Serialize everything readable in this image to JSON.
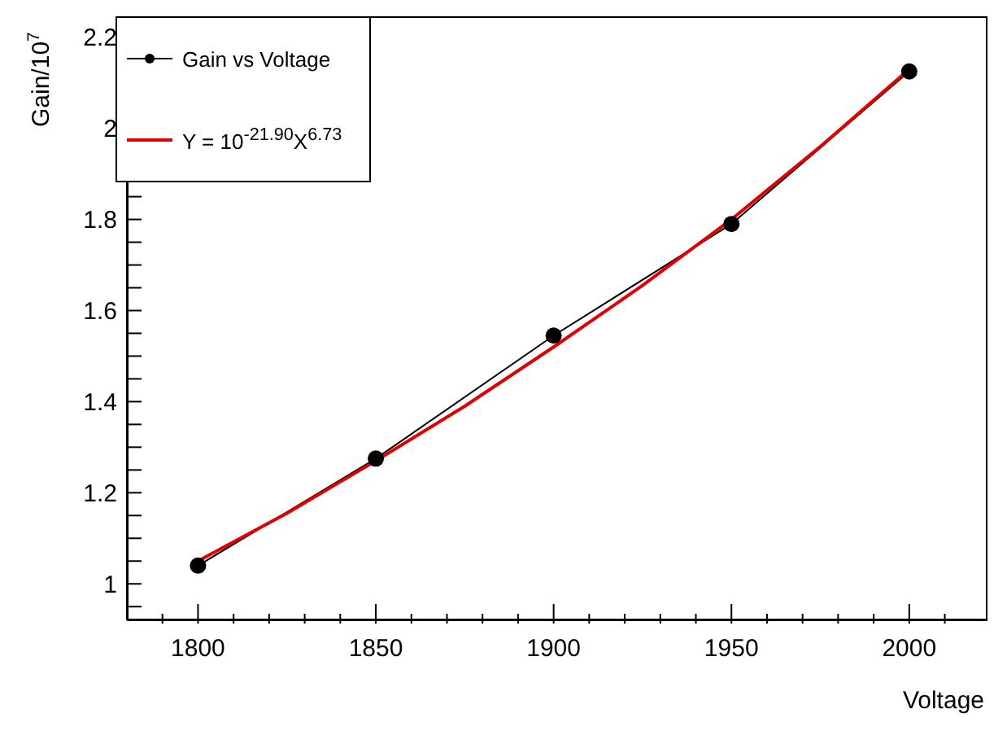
{
  "chart_data": {
    "type": "line",
    "xlabel": "Voltage",
    "ylabel": "Gain/10$^{7}$",
    "xlim": [
      1780,
      2022
    ],
    "ylim": [
      0.92,
      2.246
    ],
    "xticks": [
      {
        "value": 1790,
        "label": null
      },
      1800,
      {
        "value": 1810,
        "label": null
      },
      {
        "value": 1820,
        "label": null
      },
      {
        "value": 1830,
        "label": null
      },
      {
        "value": 1840,
        "label": null
      },
      1850,
      {
        "value": 1860,
        "label": null
      },
      {
        "value": 1870,
        "label": null
      },
      {
        "value": 1880,
        "label": null
      },
      {
        "value": 1890,
        "label": null
      },
      1900,
      {
        "value": 1910,
        "label": null
      },
      {
        "value": 1920,
        "label": null
      },
      {
        "value": 1930,
        "label": null
      },
      {
        "value": 1940,
        "label": null
      },
      1950,
      {
        "value": 1960,
        "label": null
      },
      {
        "value": 1970,
        "label": null
      },
      {
        "value": 1980,
        "label": null
      },
      {
        "value": 1990,
        "label": null
      },
      2000,
      {
        "value": 2010,
        "label": null
      }
    ],
    "yticks": [
      {
        "value": 0.95,
        "label": null
      },
      1,
      {
        "value": 1.05,
        "label": null
      },
      {
        "value": 1.1,
        "label": null
      },
      {
        "value": 1.15,
        "label": null
      },
      1.2,
      {
        "value": 1.25,
        "label": null
      },
      {
        "value": 1.3,
        "label": null
      },
      {
        "value": 1.35,
        "label": null
      },
      1.4,
      {
        "value": 1.45,
        "label": null
      },
      {
        "value": 1.5,
        "label": null
      },
      {
        "value": 1.55,
        "label": null
      },
      1.6,
      {
        "value": 1.65,
        "label": null
      },
      {
        "value": 1.7,
        "label": null
      },
      {
        "value": 1.75,
        "label": null
      },
      1.8,
      {
        "value": 1.85,
        "label": null
      },
      {
        "value": 1.9,
        "label": null
      },
      {
        "value": 1.95,
        "label": null
      },
      2,
      {
        "value": 2.05,
        "label": null
      },
      {
        "value": 2.1,
        "label": null
      },
      {
        "value": 2.15,
        "label": null
      },
      2.2
    ],
    "grid": false,
    "legend": "top left",
    "marker": "circle",
    "line_style": "solid",
    "series": [
      {
        "name": "Gain vs Voltage",
        "color": "#000000",
        "x": [
          1800,
          1850,
          1900,
          1950,
          2000
        ],
        "values": [
          1.04,
          1.275,
          1.545,
          1.79,
          2.125
        ]
      },
      {
        "name": "Y = 10$^{-21.90}$X$^{6.73}$",
        "color": "#e00000",
        "marker": "none",
        "x": [
          1800,
          1825,
          1850,
          1875,
          1900,
          1925,
          1950,
          1975,
          2000
        ],
        "values": [
          1.05,
          1.155,
          1.27,
          1.39,
          1.52,
          1.655,
          1.8,
          1.96,
          2.13
        ]
      }
    ]
  }
}
